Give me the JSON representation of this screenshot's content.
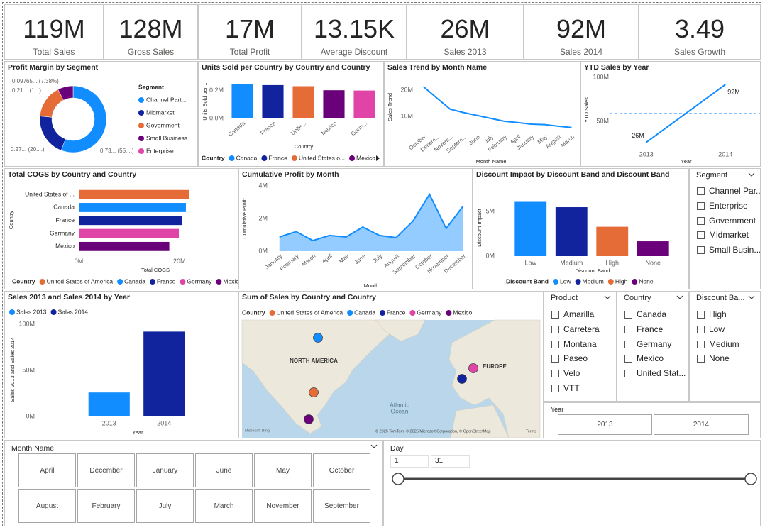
{
  "cards": [
    {
      "value": "119M",
      "label": "Total Sales"
    },
    {
      "value": "128M",
      "label": "Gross Sales"
    },
    {
      "value": "17M",
      "label": "Total Profit"
    },
    {
      "value": "13.15K",
      "label": "Average Discount"
    },
    {
      "value": "26M",
      "label": "Sales 2013"
    },
    {
      "value": "92M",
      "label": "Sales 2014"
    },
    {
      "value": "3.49",
      "label": "Sales Growth"
    }
  ],
  "chart_data": [
    {
      "type": "pie",
      "title": "Profit Margin by Segment",
      "legend_title": "Segment",
      "categories": [
        "Channel Part...",
        "Midmarket",
        "Government",
        "Small Business",
        "Enterprise"
      ],
      "values": [
        0.73,
        0.27,
        0.21,
        0.09765,
        null
      ],
      "value_labels": [
        "0.73... (55....)",
        "0.27... (20....)",
        "0.21... (1...)",
        "0.09765... (7.38%)",
        null
      ],
      "colors": [
        "#118DFF",
        "#12239E",
        "#E66C37",
        "#6B007B",
        "#E044A7"
      ]
    },
    {
      "type": "bar",
      "title": "Units Sold per Country by Country and Country",
      "categories": [
        "Canada",
        "France",
        "Unite...",
        "Mexico",
        "Germ..."
      ],
      "values": [
        247000,
        240000,
        232000,
        203000,
        201000
      ],
      "colors": [
        "#118DFF",
        "#12239E",
        "#E66C37",
        "#6B007B",
        "#E044A7"
      ],
      "ylim": [
        0,
        260000
      ],
      "yticks": [
        {
          "value": 0,
          "label": "0.0M"
        },
        {
          "value": 200000,
          "label": "0.2M"
        }
      ],
      "xlabel": "Country",
      "ylabel": "Units Sold per ...",
      "legend_title": "Country",
      "legend": [
        "Canada",
        "France",
        "United States o...",
        "Mexico"
      ]
    },
    {
      "type": "line",
      "title": "Sales Trend by Month Name",
      "categories": [
        "October",
        "Decem...",
        "Novem...",
        "Septem...",
        "June",
        "July",
        "February",
        "April",
        "January",
        "May",
        "August",
        "March"
      ],
      "values": [
        21400000,
        17000000,
        12700000,
        11400000,
        10300000,
        9200000,
        8100000,
        7600000,
        7000000,
        6800000,
        6200000,
        5700000
      ],
      "color": "#118DFF",
      "ylim": [
        4000000,
        23000000
      ],
      "yticks": [
        {
          "value": 10000000,
          "label": "10M"
        },
        {
          "value": 20000000,
          "label": "20M"
        }
      ],
      "xlabel": "Month Name",
      "ylabel": "Sales Trend"
    },
    {
      "type": "line",
      "title": "YTD Sales by Year",
      "categories": [
        "2013",
        "2014"
      ],
      "values": [
        26000000,
        92000000
      ],
      "value_labels": [
        "26M",
        "92M"
      ],
      "color": "#118DFF",
      "ylim": [
        20000000,
        105000000
      ],
      "yticks": [
        {
          "value": 50000000,
          "label": "50M"
        },
        {
          "value": 100000000,
          "label": "100M"
        }
      ],
      "reference_line": 59000000,
      "xlabel": "Year",
      "ylabel": "YTD Sales"
    },
    {
      "type": "bar",
      "horizontal": true,
      "title": "Total COGS by Country and Country",
      "categories": [
        "United States of ...",
        "Canada",
        "France",
        "Germany",
        "Mexico"
      ],
      "values": [
        22000000,
        21300000,
        20600000,
        19900000,
        18000000
      ],
      "colors": [
        "#E66C37",
        "#118DFF",
        "#12239E",
        "#E044A7",
        "#6B007B"
      ],
      "xlim": [
        0,
        23000000
      ],
      "xticks": [
        {
          "value": 0,
          "label": "0M"
        },
        {
          "value": 20000000,
          "label": "20M"
        }
      ],
      "xlabel": "Total COGS",
      "ylabel": "Country",
      "legend_title": "Country",
      "legend": [
        "United States of America",
        "Canada",
        "France",
        "Germany",
        "Mexico"
      ]
    },
    {
      "type": "area",
      "title": "Cumulative Profit by Month",
      "categories": [
        "January",
        "February",
        "March",
        "April",
        "May",
        "June",
        "July",
        "August",
        "September",
        "October",
        "November",
        "December"
      ],
      "values": [
        870000,
        1200000,
        650000,
        960000,
        870000,
        1480000,
        960000,
        830000,
        1830000,
        3480000,
        1390000,
        2740000
      ],
      "color": "#118DFF",
      "ylim": [
        0,
        4000000
      ],
      "yticks": [
        {
          "value": 0,
          "label": "0M"
        },
        {
          "value": 2000000,
          "label": "2M"
        },
        {
          "value": 4000000,
          "label": "4M"
        }
      ],
      "xlabel": "Month",
      "ylabel": "Cumulative Profit"
    },
    {
      "type": "bar",
      "title": "Discount Impact by Discount Band and Discount Band",
      "categories": [
        "Low",
        "Medium",
        "High",
        "None"
      ],
      "values": [
        6100000,
        5500000,
        3300000,
        1670000
      ],
      "colors": [
        "#118DFF",
        "#12239E",
        "#E66C37",
        "#6B007B"
      ],
      "ylim": [
        0,
        6300000
      ],
      "yticks": [
        {
          "value": 0,
          "label": "0M"
        },
        {
          "value": 5000000,
          "label": "5M"
        }
      ],
      "xlabel": "Discount Band",
      "ylabel": "Discount Impact",
      "legend_title": "Discount Band"
    },
    {
      "type": "bar",
      "title": "Sales 2013 and Sales 2014 by Year",
      "categories": [
        "2013",
        "2014"
      ],
      "series": [
        {
          "name": "Sales 2013",
          "color": "#118DFF",
          "values": [
            26000000,
            null
          ]
        },
        {
          "name": "Sales 2014",
          "color": "#12239E",
          "values": [
            null,
            92000000
          ]
        }
      ],
      "ylim": [
        0,
        105000000
      ],
      "yticks": [
        {
          "value": 0,
          "label": "0M"
        },
        {
          "value": 50000000,
          "label": "50M"
        },
        {
          "value": 100000000,
          "label": "100M"
        }
      ],
      "xlabel": "Year",
      "ylabel": "Sales 2013 and Sales 2014"
    },
    {
      "type": "map",
      "title": "Sum of Sales by Country and Country",
      "legend_title": "Country",
      "legend": [
        "United States of America",
        "Canada",
        "France",
        "Germany",
        "Mexico"
      ],
      "colors": [
        "#E66C37",
        "#118DFF",
        "#12239E",
        "#E044A7",
        "#6B007B"
      ],
      "labels": [
        "NORTH AMERICA",
        "EUROPE",
        "Atlantic",
        "Ocean"
      ],
      "attribution": [
        "Microsoft Bing",
        "© 2025 TomTom, © 2025 Microsoft Corporation, © OpenStreetMap",
        "Terms"
      ]
    }
  ],
  "slicers": [
    {
      "title": "Segment",
      "items": [
        "Channel Par...",
        "Enterprise",
        "Government",
        "Midmarket",
        "Small Busin..."
      ]
    },
    {
      "title": "Product",
      "items": [
        "Amarilla",
        "Carretera",
        "Montana",
        "Paseo",
        "Velo",
        "VTT"
      ]
    },
    {
      "title": "Country",
      "items": [
        "Canada",
        "France",
        "Germany",
        "Mexico",
        "United Stat..."
      ]
    },
    {
      "title": "Discount Ba...",
      "items": [
        "High",
        "Low",
        "Medium",
        "None"
      ]
    }
  ],
  "year_slicer": {
    "title": "Year",
    "items": [
      "2013",
      "2014"
    ]
  },
  "month_slicer": {
    "title": "Month Name",
    "items": [
      "April",
      "December",
      "January",
      "June",
      "May",
      "October",
      "August",
      "February",
      "July",
      "March",
      "November",
      "September"
    ]
  },
  "day_slicer": {
    "title": "Day",
    "start": "1",
    "end": "31"
  }
}
